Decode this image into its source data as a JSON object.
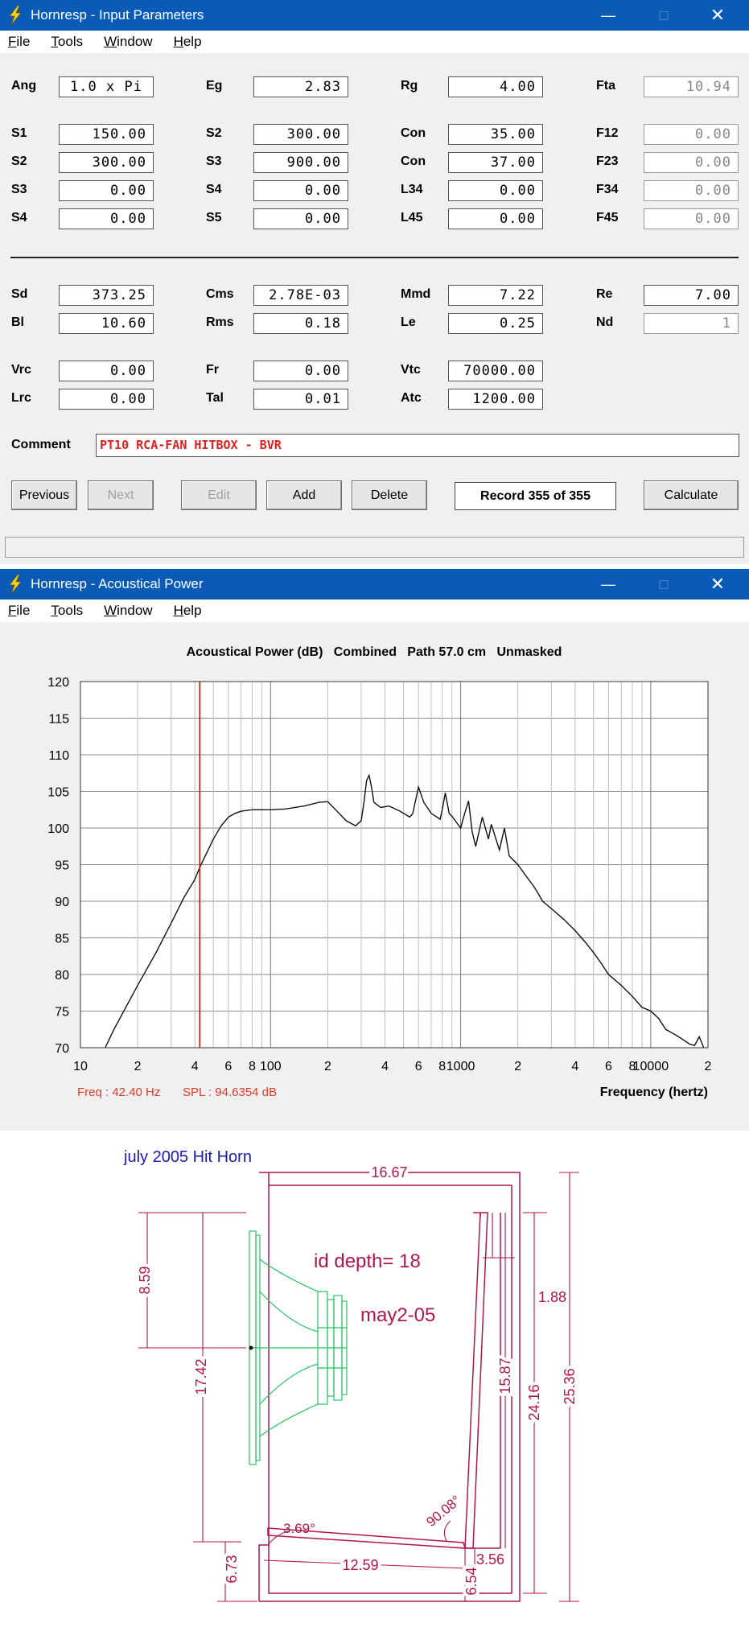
{
  "win1": {
    "title": "Hornresp - Input Parameters",
    "menu": [
      "File",
      "Tools",
      "Window",
      "Help"
    ],
    "row_params": [
      {
        "label": "Ang",
        "value": "1.0 x Pi"
      },
      {
        "label": "Eg",
        "value": "2.83"
      },
      {
        "label": "Rg",
        "value": "4.00"
      },
      {
        "label": "Fta",
        "value": "10.94"
      }
    ],
    "horn": [
      [
        {
          "label": "S1",
          "value": "150.00"
        },
        {
          "label": "S2",
          "value": "300.00"
        },
        {
          "label": "Con",
          "value": "35.00"
        },
        {
          "label": "F12",
          "value": "0.00"
        }
      ],
      [
        {
          "label": "S2",
          "value": "300.00"
        },
        {
          "label": "S3",
          "value": "900.00"
        },
        {
          "label": "Con",
          "value": "37.00"
        },
        {
          "label": "F23",
          "value": "0.00"
        }
      ],
      [
        {
          "label": "S3",
          "value": "0.00"
        },
        {
          "label": "S4",
          "value": "0.00"
        },
        {
          "label": "L34",
          "value": "0.00"
        },
        {
          "label": "F34",
          "value": "0.00"
        }
      ],
      [
        {
          "label": "S4",
          "value": "0.00"
        },
        {
          "label": "S5",
          "value": "0.00"
        },
        {
          "label": "L45",
          "value": "0.00"
        },
        {
          "label": "F45",
          "value": "0.00"
        }
      ]
    ],
    "driver": [
      [
        {
          "label": "Sd",
          "value": "373.25"
        },
        {
          "label": "Cms",
          "value": "2.78E-03"
        },
        {
          "label": "Mmd",
          "value": "7.22"
        },
        {
          "label": "Re",
          "value": "7.00"
        }
      ],
      [
        {
          "label": "Bl",
          "value": "10.60"
        },
        {
          "label": "Rms",
          "value": "0.18"
        },
        {
          "label": "Le",
          "value": "0.25"
        },
        {
          "label": "Nd",
          "value": "1"
        }
      ]
    ],
    "chamber": [
      [
        {
          "label": "Vrc",
          "value": "0.00"
        },
        {
          "label": "Fr",
          "value": "0.00"
        },
        {
          "label": "Vtc",
          "value": "70000.00"
        }
      ],
      [
        {
          "label": "Lrc",
          "value": "0.00"
        },
        {
          "label": "Tal",
          "value": "0.01"
        },
        {
          "label": "Atc",
          "value": "1200.00"
        }
      ]
    ],
    "comment_label": "Comment",
    "comment_value": "PT10 RCA-FAN HITBOX - BVR",
    "buttons": {
      "previous": "Previous",
      "next": "Next",
      "edit": "Edit",
      "add": "Add",
      "delete": "Delete",
      "calculate": "Calculate"
    },
    "record": "Record 355 of 355"
  },
  "win2": {
    "title": "Hornresp - Acoustical Power",
    "menu": [
      "File",
      "Tools",
      "Window",
      "Help"
    ],
    "chart_header": "Acoustical Power (dB)   Combined   Path 57.0 cm   Unmasked",
    "cursor_freq": "Freq : 42.40 Hz",
    "cursor_spl": "SPL : 94.6354 dB",
    "x_title": "Frequency (hertz)"
  },
  "chart_data": {
    "type": "line",
    "title": "Acoustical Power (dB)   Combined   Path 57.0 cm   Unmasked",
    "xlabel": "Frequency (hertz)",
    "ylabel": "",
    "xscale": "log",
    "xlim": [
      10,
      20000
    ],
    "ylim": [
      70,
      120
    ],
    "yticks": [
      70,
      75,
      80,
      85,
      90,
      95,
      100,
      105,
      110,
      115,
      120
    ],
    "xtick_labels": [
      "10",
      "2",
      "4",
      "6",
      "8",
      "100",
      "2",
      "4",
      "6",
      "8",
      "1000",
      "2",
      "4",
      "6",
      "8",
      "10000",
      "2"
    ],
    "grid": true,
    "cursor": {
      "freq": 42.4,
      "spl": 94.6354
    },
    "x": [
      13.5,
      15,
      20,
      25,
      30,
      35,
      40,
      42.4,
      45,
      50,
      55,
      60,
      65,
      70,
      80,
      90,
      100,
      120,
      150,
      180,
      200,
      220,
      250,
      280,
      300,
      310,
      320,
      330,
      340,
      350,
      380,
      420,
      480,
      540,
      560,
      600,
      640,
      700,
      780,
      800,
      830,
      870,
      900,
      1000,
      1050,
      1100,
      1150,
      1200,
      1300,
      1400,
      1450,
      1600,
      1700,
      1800,
      2000,
      2200,
      2400,
      2500,
      2700,
      3000,
      3500,
      4000,
      4500,
      5000,
      5500,
      6000,
      7000,
      8000,
      9000,
      10000,
      11000,
      12000,
      13000,
      14000,
      15000,
      16000,
      17000,
      18000,
      19000
    ],
    "y": [
      70,
      72.5,
      78.5,
      83,
      87,
      90.5,
      93,
      94.6,
      96,
      98.5,
      100.3,
      101.5,
      102,
      102.3,
      102.5,
      102.5,
      102.5,
      102.6,
      103,
      103.5,
      103.6,
      102.5,
      101,
      100.3,
      101,
      103.5,
      106.5,
      107.2,
      105.5,
      103.5,
      102.8,
      103,
      102.3,
      101.5,
      102,
      105.6,
      103.5,
      102,
      101.2,
      102.5,
      104.8,
      102,
      101.6,
      100,
      102,
      103.7,
      99.5,
      97.5,
      101.5,
      98.5,
      100.5,
      97,
      100,
      96.2,
      95,
      93.5,
      92.2,
      91.5,
      90,
      89,
      87.5,
      86,
      84.5,
      83,
      81.5,
      80,
      78.5,
      77,
      75.5,
      75,
      74,
      72.5,
      72,
      71.5,
      71,
      70.5,
      70.3,
      71.5,
      70
    ]
  },
  "drawing": {
    "title": "july 2005 Hit Horn",
    "note1": "id depth= 18",
    "note2": "may2-05",
    "dims": [
      "16.67",
      "8.59",
      "17.42",
      "1.88",
      "15.87",
      "24.16",
      "25.36",
      "3.69°",
      "90.08°",
      "12.59",
      "3.56",
      "6.73",
      "6.54"
    ]
  },
  "colors": {
    "titlebar": "#0a5bb7",
    "comment_text": "#e02020",
    "cursor_line": "#dd1111",
    "cursor_text": "#e03a2a",
    "drawing_magenta": "#b0154f",
    "speaker_green": "#22c55e",
    "drawing_title": "#1a1ab0"
  }
}
